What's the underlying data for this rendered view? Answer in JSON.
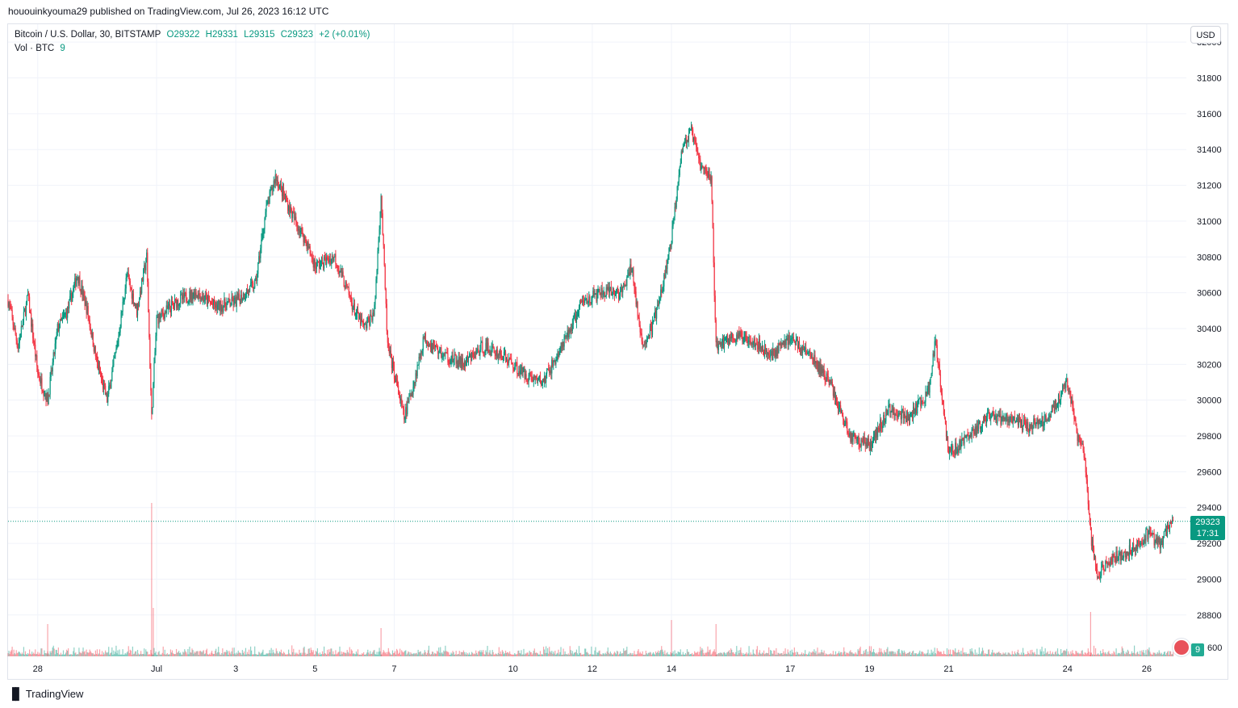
{
  "header": {
    "published_text": "hououinkyouma29 published on TradingView.com, Jul 26, 2023 16:12 UTC"
  },
  "legend": {
    "symbol": "Bitcoin / U.S. Dollar, 30, BITSTAMP",
    "open": "O29322",
    "high": "H29331",
    "low": "L29315",
    "close": "C29323",
    "change": "+2 (+0.01%)",
    "vol_label": "Vol · BTC",
    "vol_value": "9"
  },
  "toolbar": {
    "currency_button": "USD"
  },
  "price_label": {
    "price": "29323",
    "countdown": "17:31"
  },
  "volume_label": "9",
  "brand": {
    "name": "TradingView",
    "logo_text": "𝟭𝟳"
  },
  "colors": {
    "up": "#089981",
    "down": "#f23645",
    "grid": "#f0f3fa",
    "axis_text": "#131722"
  },
  "chart_data": {
    "type": "candlestick",
    "symbol": "Bitcoin / U.S. Dollar",
    "interval": "30",
    "exchange": "BITSTAMP",
    "y_axis": {
      "ticks": [
        32000,
        31800,
        31600,
        31400,
        31200,
        31000,
        30800,
        30600,
        30400,
        30200,
        30000,
        29800,
        29600,
        29400,
        29200,
        29000,
        28800
      ],
      "range": [
        28560,
        32100
      ],
      "side": "right"
    },
    "volume_axis_tick": "600",
    "x_axis": {
      "ticks": [
        "28",
        "Jul",
        "3",
        "5",
        "7",
        "10",
        "12",
        "14",
        "17",
        "19",
        "21",
        "24",
        "26"
      ],
      "tick_dates": [
        "2023-06-28",
        "2023-07-01",
        "2023-07-03",
        "2023-07-05",
        "2023-07-07",
        "2023-07-10",
        "2023-07-12",
        "2023-07-14",
        "2023-07-17",
        "2023-07-19",
        "2023-07-21",
        "2023-07-24",
        "2023-07-26"
      ],
      "range": [
        "2023-06-27 06:00",
        "2023-07-27 00:00"
      ]
    },
    "last_price": 29323,
    "grid": true,
    "price_path": [
      [
        "2023-06-27 06:00",
        30560
      ],
      [
        "2023-06-27 12:00",
        30300
      ],
      [
        "2023-06-27 18:00",
        30580
      ],
      [
        "2023-06-28 00:00",
        30150
      ],
      [
        "2023-06-28 06:00",
        30000
      ],
      [
        "2023-06-28 12:00",
        30400
      ],
      [
        "2023-06-28 18:00",
        30500
      ],
      [
        "2023-06-29 00:00",
        30700
      ],
      [
        "2023-06-29 06:00",
        30500
      ],
      [
        "2023-06-29 12:00",
        30200
      ],
      [
        "2023-06-29 18:00",
        30000
      ],
      [
        "2023-06-30 00:00",
        30300
      ],
      [
        "2023-06-30 06:00",
        30700
      ],
      [
        "2023-06-30 12:00",
        30500
      ],
      [
        "2023-06-30 18:00",
        30800
      ],
      [
        "2023-06-30 21:00",
        29900
      ],
      [
        "2023-07-01 00:00",
        30450
      ],
      [
        "2023-07-01 12:00",
        30550
      ],
      [
        "2023-07-02 00:00",
        30600
      ],
      [
        "2023-07-02 12:00",
        30520
      ],
      [
        "2023-07-03 00:00",
        30550
      ],
      [
        "2023-07-03 12:00",
        30650
      ],
      [
        "2023-07-03 18:00",
        31050
      ],
      [
        "2023-07-04 00:00",
        31250
      ],
      [
        "2023-07-04 12:00",
        31000
      ],
      [
        "2023-07-04 18:00",
        30900
      ],
      [
        "2023-07-05 00:00",
        30750
      ],
      [
        "2023-07-05 12:00",
        30800
      ],
      [
        "2023-07-06 00:00",
        30500
      ],
      [
        "2023-07-06 06:00",
        30400
      ],
      [
        "2023-07-06 12:00",
        30500
      ],
      [
        "2023-07-06 16:00",
        31150
      ],
      [
        "2023-07-06 20:00",
        30300
      ],
      [
        "2023-07-07 00:00",
        30150
      ],
      [
        "2023-07-07 06:00",
        29900
      ],
      [
        "2023-07-07 12:00",
        30100
      ],
      [
        "2023-07-07 18:00",
        30350
      ],
      [
        "2023-07-08 06:00",
        30250
      ],
      [
        "2023-07-08 18:00",
        30200
      ],
      [
        "2023-07-09 06:00",
        30300
      ],
      [
        "2023-07-09 18:00",
        30250
      ],
      [
        "2023-07-10 06:00",
        30150
      ],
      [
        "2023-07-10 18:00",
        30100
      ],
      [
        "2023-07-11 06:00",
        30300
      ],
      [
        "2023-07-11 18:00",
        30550
      ],
      [
        "2023-07-12 06:00",
        30600
      ],
      [
        "2023-07-12 18:00",
        30600
      ],
      [
        "2023-07-13 00:00",
        30750
      ],
      [
        "2023-07-13 06:00",
        30300
      ],
      [
        "2023-07-13 12:00",
        30400
      ],
      [
        "2023-07-13 18:00",
        30600
      ],
      [
        "2023-07-14 00:00",
        30900
      ],
      [
        "2023-07-14 06:00",
        31400
      ],
      [
        "2023-07-14 12:00",
        31500
      ],
      [
        "2023-07-14 18:00",
        31300
      ],
      [
        "2023-07-15 00:00",
        31250
      ],
      [
        "2023-07-15 03:00",
        30300
      ],
      [
        "2023-07-15 12:00",
        30350
      ],
      [
        "2023-07-16 00:00",
        30350
      ],
      [
        "2023-07-16 12:00",
        30250
      ],
      [
        "2023-07-17 00:00",
        30350
      ],
      [
        "2023-07-17 12:00",
        30250
      ],
      [
        "2023-07-18 00:00",
        30100
      ],
      [
        "2023-07-18 12:00",
        29800
      ],
      [
        "2023-07-19 00:00",
        29750
      ],
      [
        "2023-07-19 12:00",
        29950
      ],
      [
        "2023-07-20 00:00",
        29900
      ],
      [
        "2023-07-20 12:00",
        30050
      ],
      [
        "2023-07-20 16:00",
        30350
      ],
      [
        "2023-07-21 00:00",
        29700
      ],
      [
        "2023-07-21 12:00",
        29800
      ],
      [
        "2023-07-22 00:00",
        29900
      ],
      [
        "2023-07-22 12:00",
        29900
      ],
      [
        "2023-07-23 00:00",
        29850
      ],
      [
        "2023-07-23 12:00",
        29900
      ],
      [
        "2023-07-24 00:00",
        30100
      ],
      [
        "2023-07-24 06:00",
        29800
      ],
      [
        "2023-07-24 10:00",
        29700
      ],
      [
        "2023-07-24 14:00",
        29250
      ],
      [
        "2023-07-24 18:00",
        29000
      ],
      [
        "2023-07-25 00:00",
        29100
      ],
      [
        "2023-07-25 12:00",
        29150
      ],
      [
        "2023-07-26 00:00",
        29250
      ],
      [
        "2023-07-26 08:00",
        29200
      ],
      [
        "2023-07-26 16:00",
        29323
      ]
    ],
    "volume_spikes": [
      [
        "2023-06-30 21:00",
        190
      ],
      [
        "2023-06-30 22:00",
        60
      ],
      [
        "2023-07-06 16:00",
        35
      ],
      [
        "2023-07-14 00:00",
        45
      ],
      [
        "2023-07-15 03:00",
        40
      ],
      [
        "2023-07-24 14:00",
        55
      ],
      [
        "2023-06-28 06:00",
        40
      ]
    ]
  }
}
